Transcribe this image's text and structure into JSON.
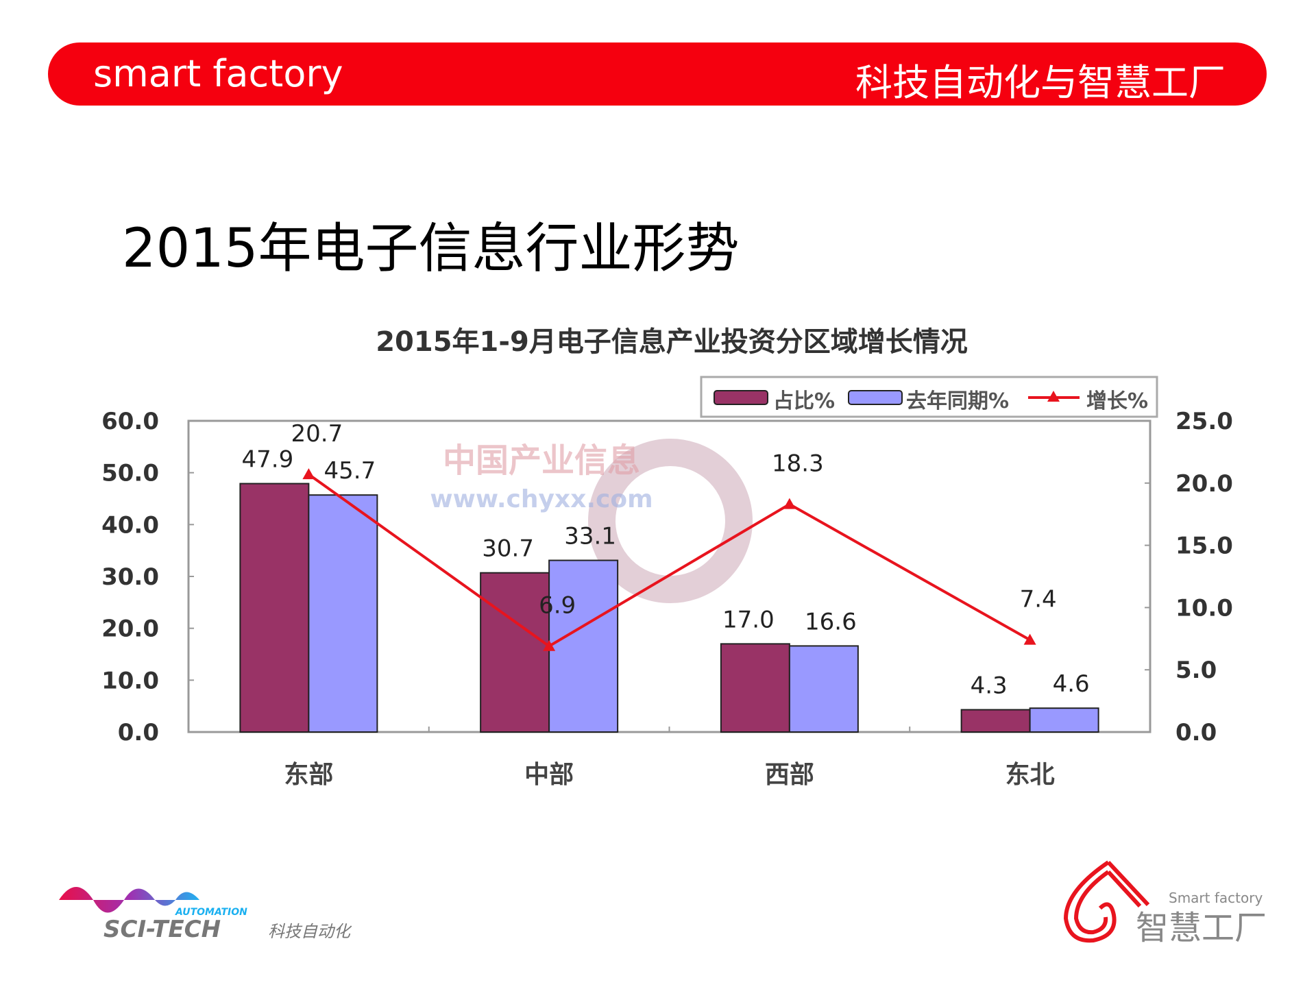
{
  "header": {
    "left": "smart factory",
    "right": "科技自动化与智慧工厂"
  },
  "slide_title": "2015年电子信息行业形势",
  "chart_data": {
    "type": "bar",
    "title": "2015年1-9月电子信息产业投资分区域增长情况",
    "categories": [
      "东部",
      "中部",
      "西部",
      "东北"
    ],
    "series": [
      {
        "name": "占比%",
        "type": "bar",
        "axis": "left",
        "color": "#993366",
        "values": [
          47.9,
          30.7,
          17.0,
          4.3
        ]
      },
      {
        "name": "去年同期%",
        "type": "bar",
        "axis": "left",
        "color": "#9999ff",
        "values": [
          45.7,
          33.1,
          16.6,
          4.6
        ]
      },
      {
        "name": "增长%",
        "type": "line",
        "axis": "right",
        "color": "#e8141e",
        "values": [
          20.7,
          6.9,
          18.3,
          7.4
        ]
      }
    ],
    "ylim": [
      0,
      60
    ],
    "yticks": [
      "0.0",
      "10.0",
      "20.0",
      "30.0",
      "40.0",
      "50.0",
      "60.0"
    ],
    "y2lim": [
      0,
      25
    ],
    "y2ticks": [
      "0.0",
      "5.0",
      "10.0",
      "15.0",
      "20.0",
      "25.0"
    ],
    "legend": "top-right",
    "watermark": {
      "line1": "中国产业信息",
      "line2": "www.chyxx.com"
    }
  },
  "logos": {
    "left": {
      "top": "AUTOMATION",
      "main": "SCI-TECH",
      "cn": "科技自动化"
    },
    "right": {
      "en": "Smart factory",
      "cn": "智慧工厂"
    }
  }
}
